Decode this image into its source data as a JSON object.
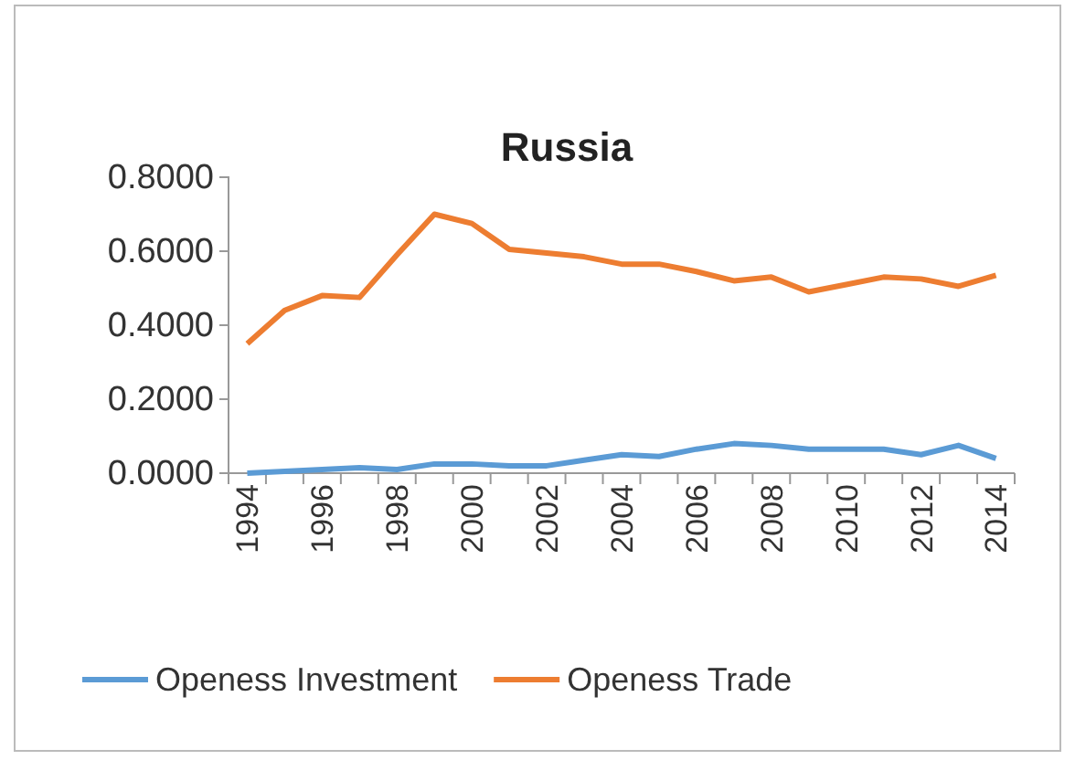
{
  "chart_data": {
    "type": "line",
    "title": "Russia",
    "categories": [
      "1994",
      null,
      "1996",
      null,
      "1998",
      null,
      "2000",
      null,
      "2002",
      null,
      "2004",
      null,
      "2006",
      null,
      "2008",
      null,
      "2010",
      null,
      "2012",
      null,
      "2014"
    ],
    "series": [
      {
        "name": "Openess Investment",
        "color": "#5b9bd5",
        "values": [
          0.0,
          0.005,
          0.01,
          0.015,
          0.01,
          0.025,
          0.025,
          0.02,
          0.02,
          0.035,
          0.05,
          0.045,
          0.065,
          0.08,
          0.075,
          0.065,
          0.065,
          0.065,
          0.05,
          0.075,
          0.04
        ]
      },
      {
        "name": "Openess Trade",
        "color": "#ed7d31",
        "values": [
          0.35,
          0.44,
          0.48,
          0.475,
          0.59,
          0.7,
          0.675,
          0.605,
          0.595,
          0.585,
          0.565,
          0.565,
          0.545,
          0.52,
          0.53,
          0.49,
          0.51,
          0.53,
          0.525,
          0.505,
          0.535
        ]
      }
    ],
    "ylim": [
      0,
      0.8
    ],
    "yticks": [
      {
        "value": 0,
        "label": "0.0000"
      },
      {
        "value": 0.2,
        "label": "0.2000"
      },
      {
        "value": 0.4,
        "label": "0.4000"
      },
      {
        "value": 0.6,
        "label": "0.6000"
      },
      {
        "value": 0.8,
        "label": "0.8000"
      }
    ],
    "legend": "bottom",
    "line_style": "solid",
    "marker": "none"
  }
}
